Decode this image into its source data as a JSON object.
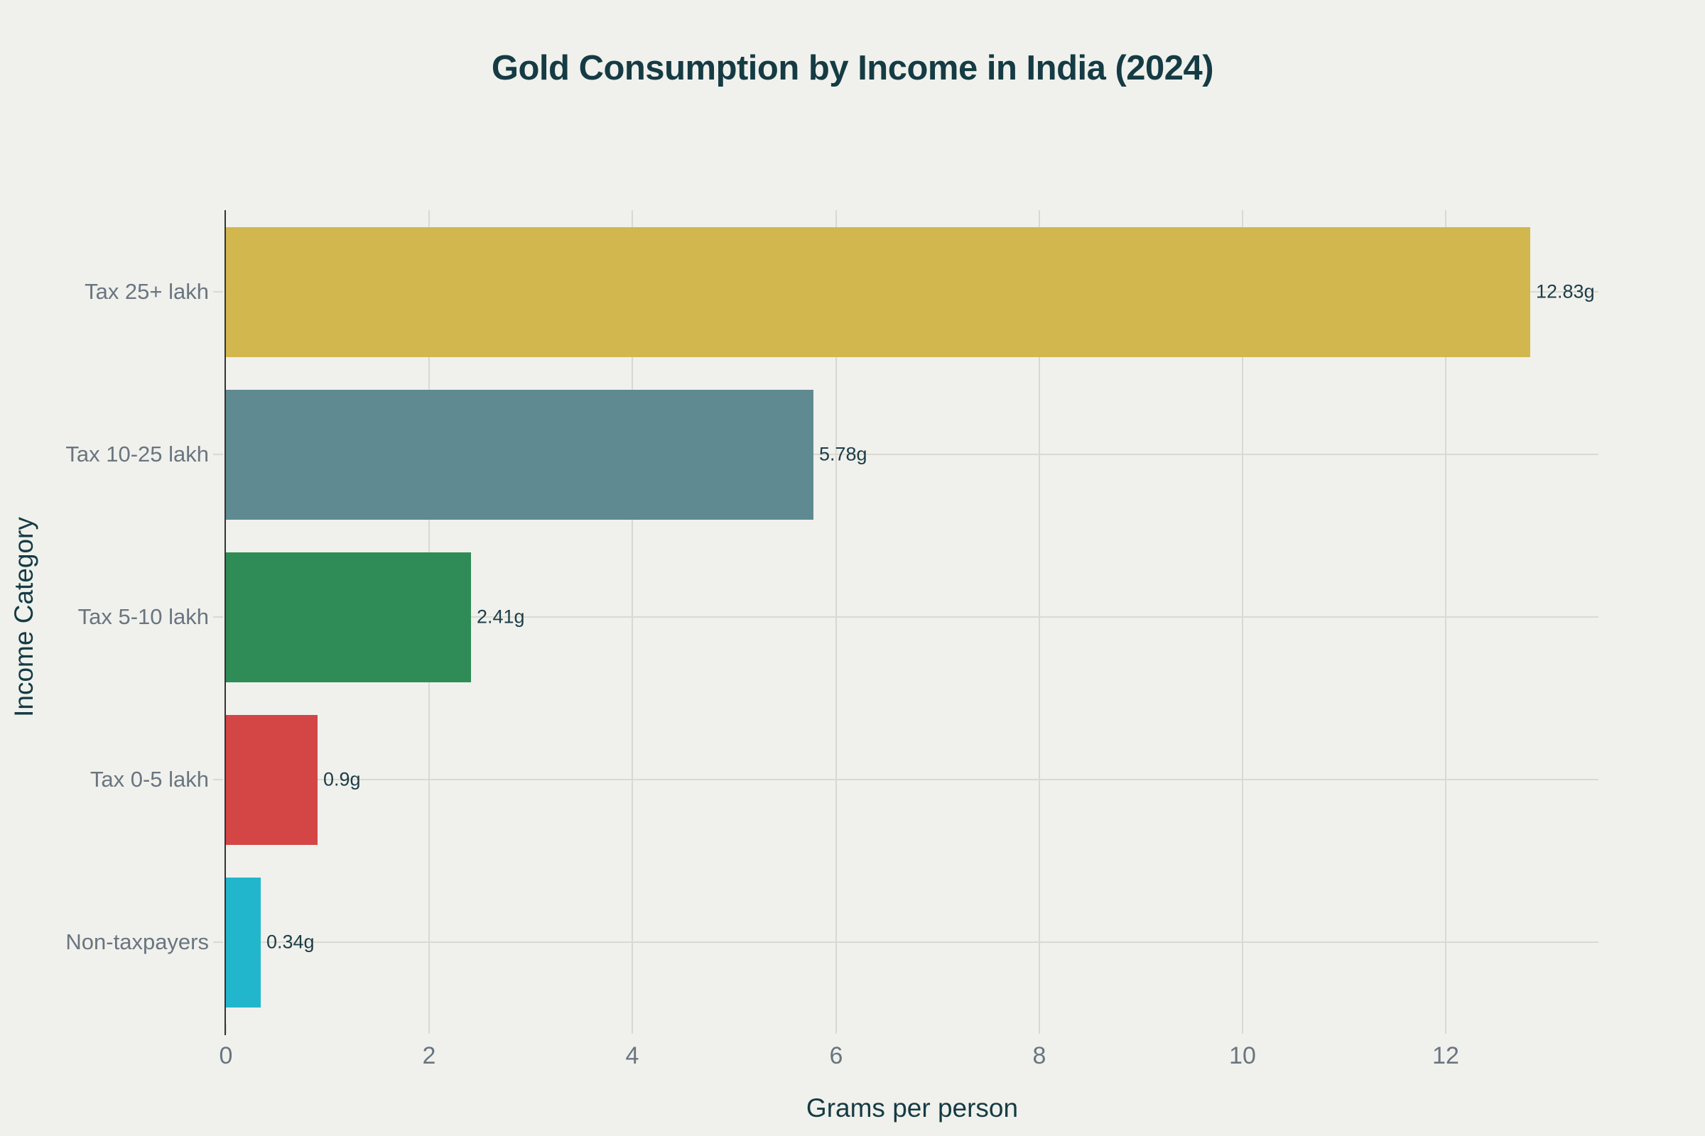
{
  "theme": {
    "background": "#f0f1ec",
    "title_color": "#153b44",
    "axis_title_color": "#153b44",
    "tick_label_color": "#6a7580",
    "category_label_color": "#6a7580",
    "value_label_color": "#1d3d47",
    "grid_color": "#d9d9d1",
    "axis_line_color": "#333333"
  },
  "chart_data": {
    "type": "bar",
    "orientation": "horizontal",
    "title": "Gold Consumption by Income in India (2024)",
    "xlabel": "Grams per person",
    "ylabel": "Income Category",
    "categories": [
      "Tax 25+ lakh",
      "Tax 10-25 lakh",
      "Tax 5-10 lakh",
      "Tax 0-5 lakh",
      "Non-taxpayers"
    ],
    "values": [
      12.83,
      5.78,
      2.41,
      0.9,
      0.34
    ],
    "value_labels": [
      "12.83g",
      "5.78g",
      "2.41g",
      "0.9g",
      "0.34g"
    ],
    "bar_colors": [
      "#d1b74d",
      "#5f8a92",
      "#2f8c57",
      "#d44545",
      "#22b6cc"
    ],
    "x_ticks": [
      "0",
      "2",
      "4",
      "6",
      "8",
      "10",
      "12"
    ],
    "x_tick_values": [
      0,
      2,
      4,
      6,
      8,
      10,
      12
    ],
    "xlim": [
      0,
      13.5
    ],
    "grid": true,
    "legend": "none"
  }
}
